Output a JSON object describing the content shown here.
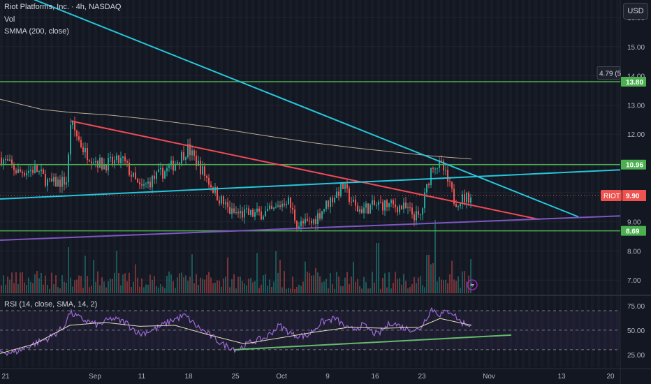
{
  "legend": {
    "title": "Riot Platforms, Inc. · 4h, NASDAQ",
    "vol": "Vol",
    "smma": "SMMA (200, close)",
    "rsi": "RSI (14, close, SMA, 14, 2)"
  },
  "currency_button": "USD",
  "colors": {
    "background": "#131722",
    "up": "#26a69a",
    "down": "#ef5350",
    "smma": "#d8c4a8",
    "cyan_line": "#26c6da",
    "red_line": "#f04a55",
    "purple_line": "#7e57c2",
    "green_level": "#4caf50",
    "rsi_line": "#9c6ad6",
    "rsi_ma": "#e6e0b8"
  },
  "chart_data": [
    {
      "type": "line",
      "subtype": "candlestick",
      "title": "Riot Platforms, Inc. · 4h, NASDAQ",
      "x_tick_labels": [
        "21",
        "Sep",
        "11",
        "18",
        "25",
        "Oct",
        "9",
        "16",
        "23",
        "Nov",
        "13",
        "20"
      ],
      "y_tick_labels": [
        "7.00",
        "8.00",
        "9.00",
        "10.00",
        "11.00",
        "12.00",
        "13.00",
        "14.00",
        "15.00",
        "16.00"
      ],
      "y_ticks": [
        7,
        8,
        9,
        10,
        11,
        12,
        13,
        14,
        15,
        16
      ],
      "ylim": [
        6.55,
        16.6
      ],
      "price_path": {
        "x": [
          0,
          25,
          50,
          70,
          95,
          100,
          120,
          145,
          175,
          200,
          220,
          245,
          268,
          290,
          310,
          330,
          360,
          390,
          410,
          425,
          445,
          470,
          490,
          510,
          545,
          575,
          600,
          618,
          632,
          650,
          675
        ],
        "y": [
          11.2,
          10.7,
          10.8,
          10.3,
          10.4,
          12.4,
          11.4,
          10.95,
          11.1,
          10.1,
          10.5,
          10.9,
          11.5,
          10.7,
          9.9,
          9.3,
          9.25,
          9.35,
          9.8,
          8.9,
          8.95,
          9.7,
          10.2,
          9.4,
          9.6,
          9.5,
          9.1,
          11.0,
          10.9,
          9.7,
          9.9
        ]
      },
      "level_lines": [
        {
          "value": 13.8,
          "label": "13.80"
        },
        {
          "value": 10.96,
          "label": "10.96"
        },
        {
          "value": 8.69,
          "label": "8.69"
        }
      ],
      "price_badge": {
        "symbol": "RIOT",
        "value": 9.9,
        "label": "9.90"
      },
      "alert_badge": {
        "value": 14.1,
        "label": "4.79 (5"
      },
      "trend_lines": [
        {
          "name": "cyan-descending",
          "x1": 40,
          "y1": 16.7,
          "x2": 828,
          "y2": 9.17
        },
        {
          "name": "red-descending",
          "x1": 102,
          "y1": 12.45,
          "x2": 772,
          "y2": 9.08
        },
        {
          "name": "cyan-ascending",
          "x1": 0,
          "y1": 9.78,
          "x2": 888,
          "y2": 10.78
        },
        {
          "name": "purple-ascending",
          "x1": 0,
          "y1": 8.37,
          "x2": 888,
          "y2": 9.2
        }
      ],
      "smma": {
        "x": [
          0,
          60,
          100,
          160,
          220,
          300,
          380,
          450,
          520,
          580,
          620,
          675
        ],
        "y": [
          13.2,
          12.85,
          12.75,
          12.65,
          12.5,
          12.25,
          11.95,
          11.7,
          11.5,
          11.35,
          11.25,
          11.15
        ]
      },
      "grid": true
    },
    {
      "type": "line",
      "title": "RSI (14, close, SMA, 14, 2)",
      "y_tick_labels": [
        "25.00",
        "50.00",
        "75.00"
      ],
      "y_ticks": [
        25,
        50,
        75
      ],
      "ylim": [
        12,
        85
      ],
      "bands": [
        30,
        50,
        70
      ],
      "rsi": {
        "x": [
          0,
          20,
          45,
          70,
          90,
          100,
          115,
          140,
          160,
          180,
          200,
          225,
          245,
          265,
          280,
          300,
          320,
          340,
          360,
          380,
          400,
          420,
          440,
          460,
          480,
          500,
          520,
          540,
          560,
          580,
          600,
          618,
          630,
          645,
          660,
          675
        ],
        "y": [
          28,
          27,
          35,
          42,
          52,
          68,
          62,
          55,
          62,
          58,
          46,
          52,
          60,
          65,
          55,
          45,
          35,
          30,
          38,
          42,
          55,
          45,
          44,
          58,
          62,
          50,
          55,
          45,
          58,
          52,
          50,
          72,
          66,
          70,
          58,
          55
        ]
      },
      "rsi_ma": {
        "x": [
          0,
          50,
          100,
          150,
          200,
          250,
          300,
          350,
          400,
          450,
          500,
          550,
          600,
          630,
          675
        ],
        "y": [
          26,
          36,
          55,
          58,
          54,
          55,
          45,
          36,
          42,
          48,
          53,
          52,
          53,
          62,
          55
        ]
      },
      "trend_line": {
        "x1": 335,
        "y1": 30,
        "x2": 732,
        "y2": 45
      }
    }
  ]
}
